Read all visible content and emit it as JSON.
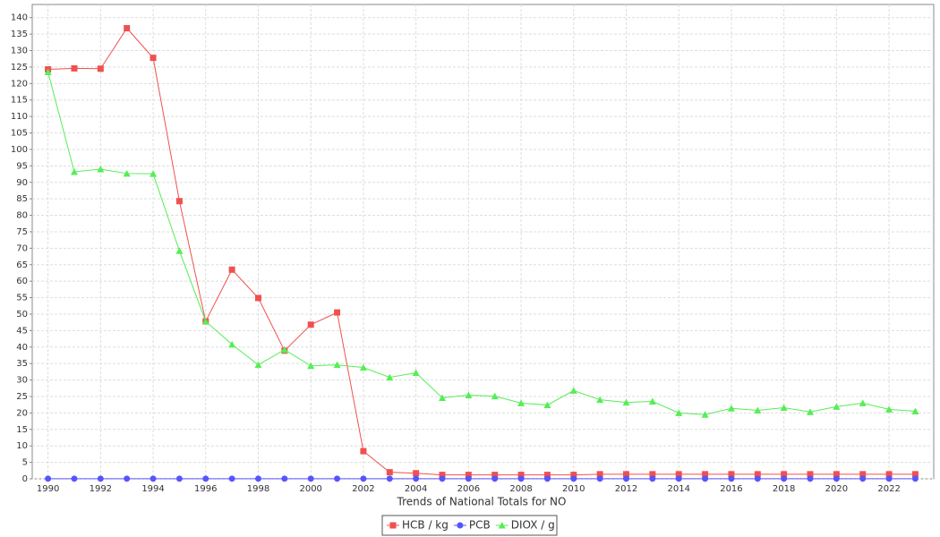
{
  "chart_data": {
    "type": "line",
    "x_label": "Trends of National Totals for NO",
    "x": [
      1990,
      1991,
      1992,
      1993,
      1994,
      1995,
      1996,
      1997,
      1998,
      1999,
      2000,
      2001,
      2002,
      2003,
      2004,
      2005,
      2006,
      2007,
      2008,
      2009,
      2010,
      2011,
      2012,
      2013,
      2014,
      2015,
      2016,
      2017,
      2018,
      2019,
      2020,
      2021,
      2022,
      2023
    ],
    "xlim": [
      1989.4,
      2023.7
    ],
    "xticks": [
      1990,
      1992,
      1994,
      1996,
      1998,
      2000,
      2002,
      2004,
      2006,
      2008,
      2010,
      2012,
      2014,
      2016,
      2018,
      2020,
      2022
    ],
    "ylim": [
      0,
      144
    ],
    "yticks": [
      0,
      5,
      10,
      15,
      20,
      25,
      30,
      35,
      40,
      45,
      50,
      55,
      60,
      65,
      70,
      75,
      80,
      85,
      90,
      95,
      100,
      105,
      110,
      115,
      120,
      125,
      130,
      135,
      140
    ],
    "grid": true,
    "series": [
      {
        "name": "HCB / kg",
        "color": "#f05050",
        "marker": "square",
        "values": [
          124.3,
          124.6,
          124.5,
          136.8,
          127.8,
          84.3,
          47.8,
          63.5,
          54.9,
          38.9,
          46.8,
          50.5,
          8.4,
          2.0,
          1.7,
          1.2,
          1.2,
          1.2,
          1.2,
          1.2,
          1.2,
          1.4,
          1.4,
          1.4,
          1.4,
          1.4,
          1.4,
          1.4,
          1.4,
          1.4,
          1.4,
          1.4,
          1.4,
          1.4
        ]
      },
      {
        "name": "PCB",
        "color": "#5555ff",
        "marker": "circle",
        "values": [
          0.05,
          0.05,
          0.05,
          0.05,
          0.05,
          0.05,
          0.05,
          0.05,
          0.05,
          0.05,
          0.05,
          0.05,
          0.05,
          0.05,
          0.05,
          0.05,
          0.05,
          0.05,
          0.05,
          0.05,
          0.05,
          0.05,
          0.05,
          0.05,
          0.05,
          0.05,
          0.05,
          0.05,
          0.05,
          0.05,
          0.05,
          0.05,
          0.05,
          0.05
        ]
      },
      {
        "name": "DIOX / g",
        "color": "#55ee55",
        "marker": "triangle",
        "values": [
          123.5,
          93.2,
          94.0,
          92.7,
          92.6,
          69.2,
          47.8,
          40.8,
          34.6,
          39.2,
          34.3,
          34.6,
          33.8,
          30.8,
          32.2,
          24.6,
          25.4,
          25.1,
          23.0,
          22.4,
          26.8,
          24.0,
          23.2,
          23.5,
          20.0,
          19.5,
          21.4,
          20.8,
          21.6,
          20.3,
          21.9,
          23.0,
          21.1,
          20.5
        ]
      }
    ]
  }
}
